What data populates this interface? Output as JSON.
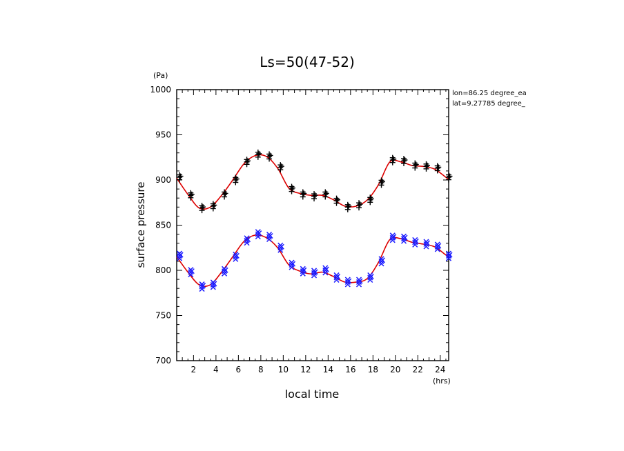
{
  "chart_data": {
    "type": "scatter",
    "title": "Ls=50(47-52)",
    "xlabel": "local time",
    "ylabel": "surface pressure",
    "x_unit": "(hrs)",
    "y_unit": "(Pa)",
    "xlim": [
      0.5,
      24.75
    ],
    "ylim": [
      700,
      1000
    ],
    "xticks": [
      2,
      4,
      6,
      8,
      10,
      12,
      14,
      16,
      18,
      20,
      22,
      24
    ],
    "yticks": [
      700,
      750,
      800,
      850,
      900,
      950,
      1000
    ],
    "annotations": [
      "lon=86.25 degree_ea",
      "lat=9.27785 degree_"
    ],
    "colors": {
      "fit": "#dd0000",
      "upper_markers": "#000000",
      "lower_markers": "#1a1aff",
      "axes": "#000000"
    },
    "series": [
      {
        "name": "upper",
        "marker": "plus",
        "x": [
          0.75,
          1.75,
          2.75,
          3.75,
          4.75,
          5.75,
          6.75,
          7.75,
          8.75,
          9.75,
          10.75,
          11.75,
          12.75,
          13.75,
          14.75,
          15.75,
          16.75,
          17.75,
          18.75,
          19.75,
          20.75,
          21.75,
          22.75,
          23.75,
          24.75
        ],
        "y": [
          903,
          883,
          869,
          871,
          884,
          900,
          920,
          928,
          926,
          914,
          890,
          884,
          882,
          884,
          877,
          870,
          872,
          878,
          897,
          922,
          921,
          916,
          915,
          913,
          903
        ]
      },
      {
        "name": "lower",
        "marker": "x",
        "x": [
          0.75,
          1.75,
          2.75,
          3.75,
          4.75,
          5.75,
          6.75,
          7.75,
          8.75,
          9.75,
          10.75,
          11.75,
          12.75,
          13.75,
          14.75,
          15.75,
          16.75,
          17.75,
          18.75,
          19.75,
          20.75,
          21.75,
          22.75,
          23.75,
          24.75
        ],
        "y": [
          816,
          798,
          782,
          784,
          799,
          815,
          833,
          840,
          837,
          825,
          806,
          799,
          797,
          800,
          792,
          787,
          787,
          792,
          810,
          836,
          835,
          831,
          829,
          826,
          816
        ]
      }
    ],
    "fits": [
      {
        "name": "upper-fit",
        "x": [
          0.5,
          1.5,
          2.5,
          3.5,
          4.5,
          5.5,
          6.5,
          7.5,
          8.5,
          9.5,
          10.5,
          11.5,
          12.5,
          13.5,
          14.5,
          15.5,
          16.5,
          17.5,
          18.5,
          19.5,
          20.5,
          21.5,
          22.5,
          23.5,
          24.5,
          24.75
        ],
        "y": [
          902,
          884,
          869,
          870,
          883,
          900,
          918,
          927,
          926,
          913,
          891,
          885,
          883,
          883,
          878,
          871,
          871,
          878,
          895,
          920,
          920,
          916,
          915,
          912,
          903,
          901
        ]
      },
      {
        "name": "lower-fit",
        "x": [
          0.5,
          1.5,
          2.5,
          3.5,
          4.5,
          5.5,
          6.5,
          7.5,
          8.5,
          9.5,
          10.5,
          11.5,
          12.5,
          13.5,
          14.5,
          15.5,
          16.5,
          17.5,
          18.5,
          19.5,
          20.5,
          21.5,
          22.5,
          23.5,
          24.5,
          24.75
        ],
        "y": [
          815,
          798,
          784,
          784,
          798,
          815,
          832,
          839,
          836,
          825,
          806,
          799,
          796,
          798,
          793,
          787,
          787,
          791,
          809,
          834,
          835,
          831,
          829,
          826,
          817,
          815
        ]
      }
    ]
  }
}
